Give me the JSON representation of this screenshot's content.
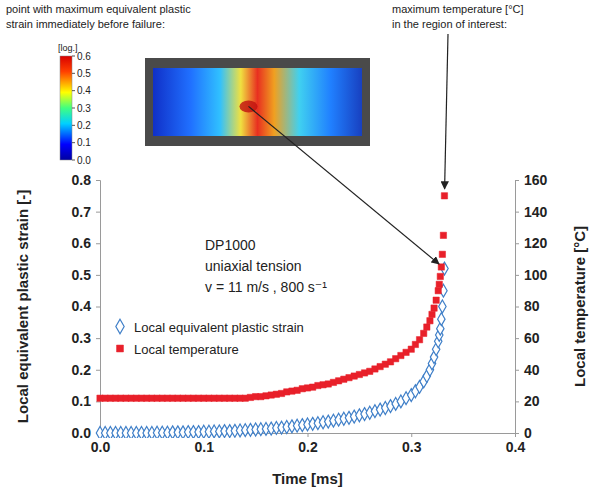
{
  "chart_data": {
    "type": "scatter",
    "annotations": [
      {
        "text": [
          "point with maximum equivalent plastic",
          "strain immediately before failure:"
        ]
      },
      {
        "text": [
          "maximum temperature [°C]",
          "in the region of interest:"
        ]
      },
      {
        "text": [
          "DP1000",
          "uniaxial tension",
          "v = 11 m/s , 800 s⁻¹"
        ]
      }
    ],
    "x_label": "Time [ms]",
    "y_label": "Local equivalent plastic strain [-]",
    "y2_label": "Local temperature [°C]",
    "x": [
      0,
      0.005,
      0.01,
      0.015,
      0.02,
      0.025,
      0.03,
      0.035,
      0.04,
      0.045,
      0.05,
      0.055,
      0.06,
      0.065,
      0.07,
      0.075,
      0.08,
      0.085,
      0.09,
      0.095,
      0.1,
      0.105,
      0.11,
      0.115,
      0.12,
      0.125,
      0.13,
      0.135,
      0.14,
      0.145,
      0.15,
      0.155,
      0.16,
      0.165,
      0.17,
      0.175,
      0.18,
      0.185,
      0.19,
      0.195,
      0.2,
      0.205,
      0.21,
      0.215,
      0.22,
      0.225,
      0.23,
      0.235,
      0.24,
      0.245,
      0.25,
      0.255,
      0.26,
      0.265,
      0.27,
      0.275,
      0.28,
      0.285,
      0.29,
      0.295,
      0.3,
      0.304,
      0.308,
      0.312,
      0.315,
      0.318,
      0.32,
      0.322,
      0.324,
      0.326,
      0.327,
      0.328,
      0.329,
      0.33,
      0.331,
      0.332
    ],
    "series": [
      {
        "name": "Local equivalent plastic strain",
        "color": "#3f7fc8",
        "marker": "diamond",
        "line_style": "none",
        "values": [
          0,
          0,
          0,
          0,
          0,
          0,
          0,
          0,
          0,
          0,
          0,
          0.001,
          0.001,
          0.001,
          0.002,
          0.002,
          0.002,
          0.003,
          0.003,
          0.003,
          0.004,
          0.004,
          0.005,
          0.005,
          0.006,
          0.006,
          0.007,
          0.008,
          0.009,
          0.01,
          0.011,
          0.012,
          0.013,
          0.014,
          0.016,
          0.017,
          0.019,
          0.021,
          0.023,
          0.025,
          0.027,
          0.029,
          0.031,
          0.034,
          0.036,
          0.039,
          0.042,
          0.045,
          0.048,
          0.052,
          0.056,
          0.06,
          0.064,
          0.069,
          0.074,
          0.079,
          0.085,
          0.092,
          0.1,
          0.11,
          0.12,
          0.132,
          0.146,
          0.163,
          0.18,
          0.2,
          0.22,
          0.24,
          0.265,
          0.29,
          0.31,
          0.33,
          0.36,
          0.4,
          0.45,
          0.52
        ]
      },
      {
        "name": "Local temperature",
        "color": "#e8202a",
        "marker": "square",
        "line_style": "none",
        "axis": "y2",
        "values": [
          22,
          22,
          22,
          22,
          22,
          22,
          22,
          22,
          22,
          22,
          22,
          22,
          22,
          22,
          22,
          22,
          22,
          22,
          22,
          22,
          22,
          22,
          22,
          22,
          22,
          22,
          22,
          22,
          22,
          22.5,
          23,
          23,
          23.5,
          24,
          24.5,
          25,
          26,
          26.5,
          27,
          28,
          28.5,
          29,
          30,
          30.5,
          31,
          32,
          33,
          34,
          35,
          36,
          37,
          38,
          39,
          40.5,
          42,
          43.5,
          45,
          47,
          49,
          51,
          53,
          56,
          59,
          63,
          67,
          71,
          75,
          79,
          84,
          90,
          94,
          99,
          105,
          113,
          125,
          150
        ]
      }
    ],
    "xlim": [
      0,
      0.4
    ],
    "xticks": [
      {
        "value": 0,
        "label": "0.0"
      },
      {
        "value": 0.1,
        "label": "0.1"
      },
      {
        "value": 0.2,
        "label": "0.2"
      },
      {
        "value": 0.3,
        "label": "0.3"
      },
      {
        "value": 0.4,
        "label": "0.4"
      }
    ],
    "ylim": [
      0,
      0.8
    ],
    "yticks": [
      {
        "value": 0,
        "label": "0.0"
      },
      {
        "value": 0.1,
        "label": "0.1"
      },
      {
        "value": 0.2,
        "label": "0.2"
      },
      {
        "value": 0.3,
        "label": "0.3"
      },
      {
        "value": 0.4,
        "label": "0.4"
      },
      {
        "value": 0.5,
        "label": "0.5"
      },
      {
        "value": 0.6,
        "label": "0.6"
      },
      {
        "value": 0.7,
        "label": "0.7"
      },
      {
        "value": 0.8,
        "label": "0.8"
      }
    ],
    "y2lim": [
      0,
      160
    ],
    "y2ticks": [
      0,
      20,
      40,
      60,
      80,
      100,
      120,
      140,
      160
    ],
    "legend": "center left",
    "grid": false,
    "colorbar": {
      "label": "[log.]",
      "range": [
        0,
        0.6
      ],
      "ticks": [
        {
          "value": 0,
          "label": "0.0"
        },
        {
          "value": 0.1,
          "label": "0.1"
        },
        {
          "value": 0.2,
          "label": "0.2"
        },
        {
          "value": 0.3,
          "label": "0.3"
        },
        {
          "value": 0.4,
          "label": "0.4"
        },
        {
          "value": 0.5,
          "label": "0.5"
        },
        {
          "value": 0.6,
          "label": "0.6"
        }
      ]
    }
  }
}
